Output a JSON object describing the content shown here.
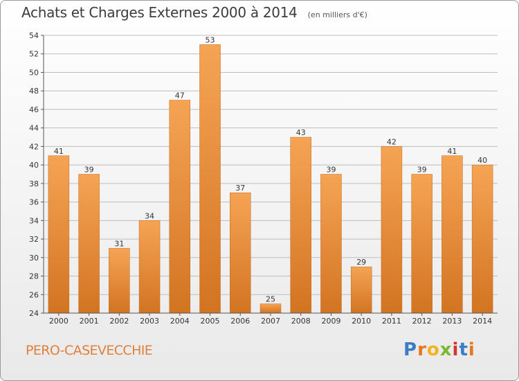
{
  "header": {
    "title": "Achats et Charges Externes 2000 à 2014",
    "unit": "(en milliers d'€)"
  },
  "footer": {
    "commune": "PERO-CASEVECCHIE",
    "brand_letters": [
      "P",
      "r",
      "o",
      "x",
      "i",
      "t",
      "i"
    ],
    "brand_colors": [
      "#3b7dc4",
      "#e8761f",
      "#f2b31c",
      "#7cb82f",
      "#d6322f",
      "#3b7dc4",
      "#e8761f"
    ]
  },
  "colors": {
    "bar_light": "#f5a454",
    "bar_dark": "#d27422",
    "grid": "#bdbdbd",
    "axis": "#555555",
    "commune_text": "#e0803a"
  },
  "chart_data": {
    "type": "bar",
    "title": "Achats et Charges Externes 2000 à 2014",
    "categories": [
      "2000",
      "2001",
      "2002",
      "2003",
      "2004",
      "2005",
      "2006",
      "2007",
      "2008",
      "2009",
      "2010",
      "2011",
      "2012",
      "2013",
      "2014"
    ],
    "values": [
      41,
      39,
      31,
      34,
      47,
      53,
      37,
      25,
      43,
      39,
      29,
      42,
      39,
      41,
      40
    ],
    "ylim": [
      24,
      54
    ],
    "yticks": [
      24,
      26,
      28,
      30,
      32,
      34,
      36,
      38,
      40,
      42,
      44,
      46,
      48,
      50,
      52,
      54
    ],
    "grid": true,
    "data_labels": true
  }
}
